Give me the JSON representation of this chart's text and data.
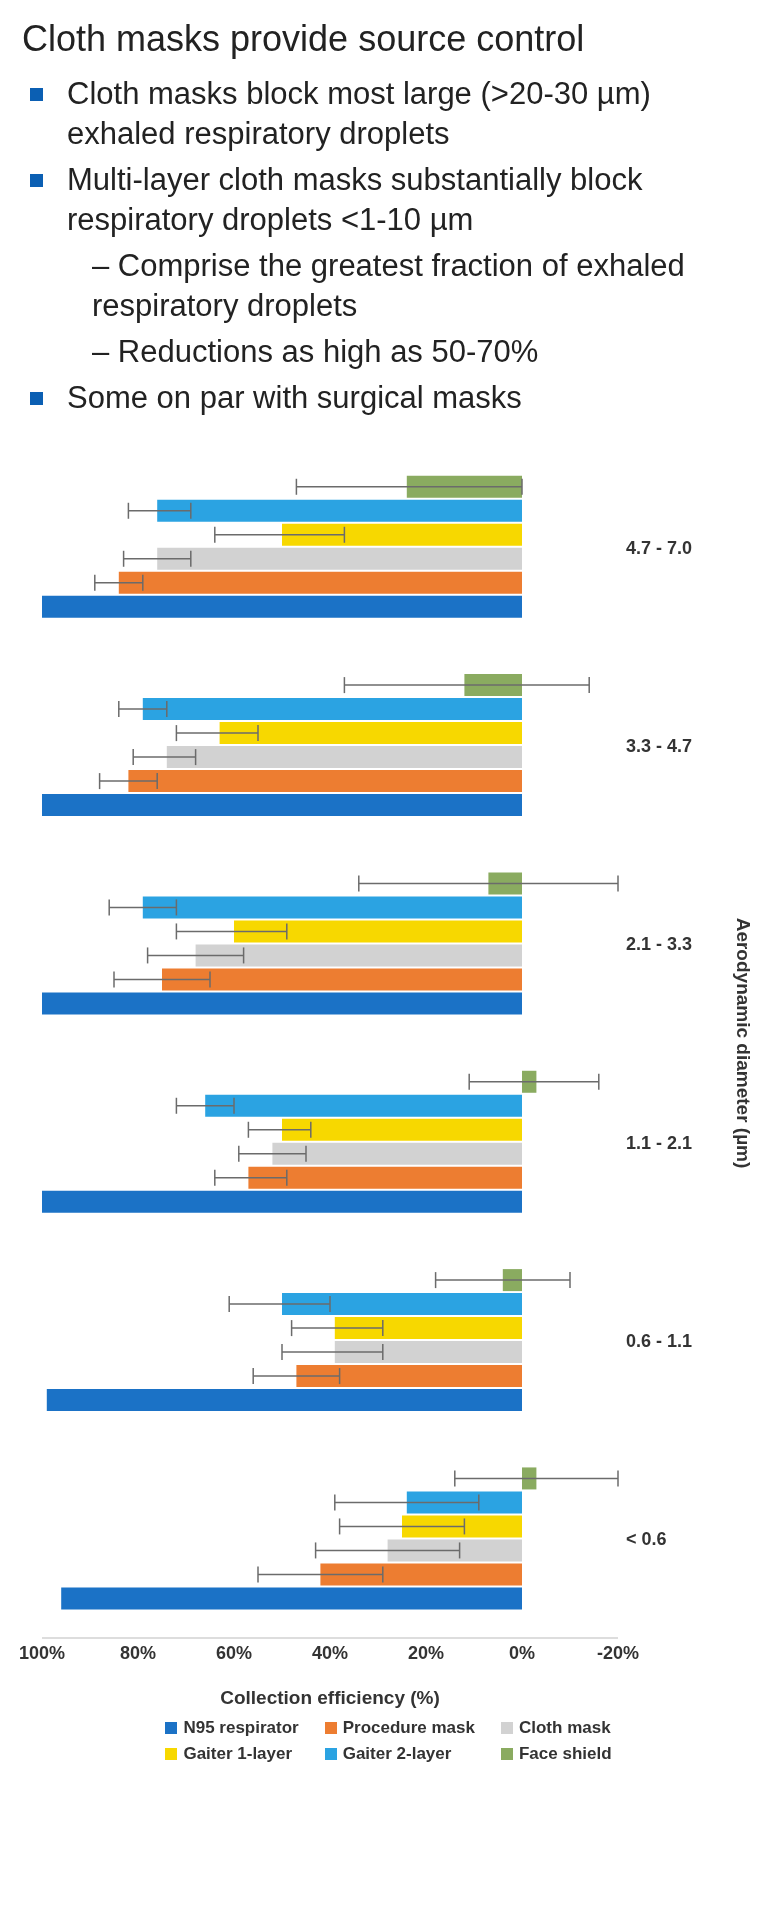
{
  "chart_data": {
    "type": "bar",
    "orientation": "horizontal",
    "title": "Cloth masks provide source control",
    "annotations": [
      "Cloth masks block most large (>20-30 µm) exhaled respiratory droplets",
      "Multi-layer cloth masks substantially block respiratory droplets <1-10 µm",
      "– Comprise the greatest fraction of exhaled respiratory droplets",
      "– Reductions as high as 50-70%",
      "Some on par with surgical masks"
    ],
    "xlabel": "Collection efficiency (%)",
    "ylabel": "Aerodynamic diameter (µm)",
    "categories": [
      "4.7 - 7.0",
      "3.3 - 4.7",
      "2.1 - 3.3",
      "1.1 - 2.1",
      "0.6 - 1.1",
      "< 0.6"
    ],
    "series": [
      {
        "name": "N95 respirator",
        "color": "#1b72c6",
        "values": [
          100,
          100,
          100,
          100,
          99,
          96
        ]
      },
      {
        "name": "Procedure mask",
        "color": "#ed7d31",
        "values": [
          84,
          82,
          75,
          57,
          47,
          42
        ],
        "errors": [
          [
            79,
            89
          ],
          [
            76,
            88
          ],
          [
            65,
            85
          ],
          [
            49,
            64
          ],
          [
            38,
            56
          ],
          [
            29,
            55
          ]
        ]
      },
      {
        "name": "Cloth mask",
        "color": "#d2d2d2",
        "values": [
          76,
          74,
          68,
          52,
          39,
          28
        ],
        "errors": [
          [
            69,
            83
          ],
          [
            68,
            81
          ],
          [
            58,
            78
          ],
          [
            45,
            59
          ],
          [
            29,
            50
          ],
          [
            13,
            43
          ]
        ]
      },
      {
        "name": "Gaiter 1-layer",
        "color": "#f7d800",
        "values": [
          50,
          63,
          60,
          50,
          39,
          25
        ],
        "errors": [
          [
            37,
            64
          ],
          [
            55,
            72
          ],
          [
            49,
            72
          ],
          [
            44,
            57
          ],
          [
            29,
            48
          ],
          [
            12,
            38
          ]
        ]
      },
      {
        "name": "Gaiter 2-layer",
        "color": "#2ba3e2",
        "values": [
          76,
          79,
          79,
          66,
          50,
          24
        ],
        "errors": [
          [
            69,
            82
          ],
          [
            74,
            84
          ],
          [
            72,
            86
          ],
          [
            60,
            72
          ],
          [
            40,
            61
          ],
          [
            9,
            39
          ]
        ]
      },
      {
        "name": "Face shield",
        "color": "#8aab60",
        "values": [
          24,
          12,
          7,
          -3,
          4,
          -3
        ],
        "errors": [
          [
            0,
            47
          ],
          [
            -14,
            37
          ],
          [
            -20,
            34
          ],
          [
            -16,
            11
          ],
          [
            -10,
            18
          ],
          [
            -20,
            14
          ]
        ]
      }
    ],
    "xlim": [
      100,
      -20
    ],
    "xticks": [
      {
        "value": 100,
        "label": "100%"
      },
      {
        "value": 80,
        "label": "80%"
      },
      {
        "value": 60,
        "label": "60%"
      },
      {
        "value": 40,
        "label": "40%"
      },
      {
        "value": 20,
        "label": "20%"
      },
      {
        "value": 0,
        "label": "0%"
      },
      {
        "value": -20,
        "label": "-20%"
      }
    ],
    "legend": "bottom"
  }
}
